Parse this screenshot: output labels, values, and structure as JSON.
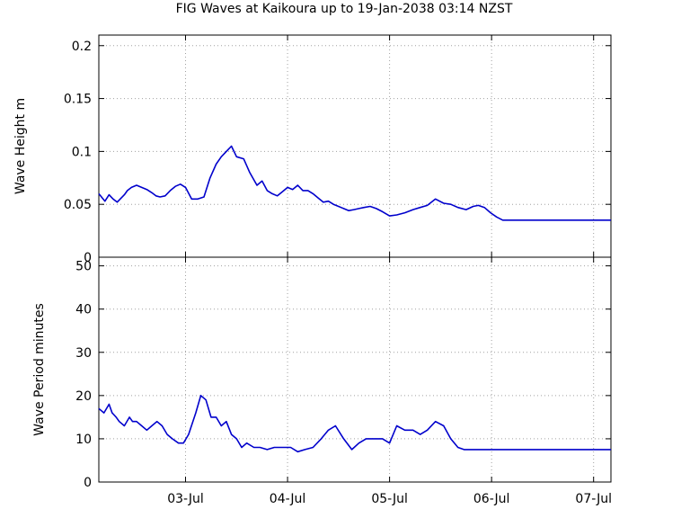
{
  "title": "FIG Waves at Kaikoura up to 19-Jan-2038 03:14 NZST",
  "colors": {
    "series": "#0000cc",
    "grid": "#a0a0a0",
    "frame": "#000000"
  },
  "chart_data": [
    {
      "type": "line",
      "ylabel": "Wave Height m",
      "ylim": [
        0,
        0.21
      ],
      "ytick_values": [
        0,
        0.05,
        0.1,
        0.15,
        0.2
      ],
      "ytick_labels": [
        "0",
        "0.05",
        "0.1",
        "0.15",
        "0.2"
      ],
      "xlim_days": [
        0,
        5.02
      ],
      "xtick_values": [
        0.85,
        1.85,
        2.85,
        3.85,
        4.85
      ],
      "xtick_labels": [
        "03-Jul",
        "04-Jul",
        "05-Jul",
        "06-Jul",
        "07-Jul"
      ],
      "grid": true,
      "series": [
        {
          "x": [
            0.0,
            0.06,
            0.1,
            0.14,
            0.18,
            0.21,
            0.25,
            0.28,
            0.32,
            0.37,
            0.42,
            0.47,
            0.52,
            0.56,
            0.6,
            0.65,
            0.7,
            0.75,
            0.8,
            0.85,
            0.91,
            0.97,
            1.03,
            1.09,
            1.15,
            1.2,
            1.25,
            1.3,
            1.35,
            1.42,
            1.48,
            1.55,
            1.6,
            1.65,
            1.7,
            1.75,
            1.8,
            1.85,
            1.9,
            1.95,
            2.0,
            2.05,
            2.1,
            2.15,
            2.2,
            2.25,
            2.3,
            2.35,
            2.4,
            2.45,
            2.5,
            2.55,
            2.6,
            2.66,
            2.72,
            2.78,
            2.85,
            2.92,
            3.0,
            3.08,
            3.15,
            3.22,
            3.3,
            3.38,
            3.45,
            3.52,
            3.6,
            3.67,
            3.72,
            3.78,
            3.84,
            3.9,
            3.96,
            4.02,
            4.08,
            4.15,
            4.22,
            4.3,
            4.36,
            4.4,
            4.45,
            4.52,
            4.6,
            4.65,
            4.72,
            4.8,
            4.88,
            5.02
          ],
          "y": [
            0.06,
            0.053,
            0.059,
            0.055,
            0.052,
            0.055,
            0.059,
            0.063,
            0.066,
            0.068,
            0.066,
            0.064,
            0.061,
            0.058,
            0.057,
            0.058,
            0.063,
            0.067,
            0.069,
            0.066,
            0.055,
            0.055,
            0.057,
            0.075,
            0.088,
            0.095,
            0.1,
            0.105,
            0.095,
            0.093,
            0.08,
            0.068,
            0.072,
            0.063,
            0.06,
            0.058,
            0.062,
            0.066,
            0.064,
            0.068,
            0.063,
            0.063,
            0.06,
            0.056,
            0.052,
            0.053,
            0.05,
            0.048,
            0.046,
            0.044,
            0.045,
            0.046,
            0.047,
            0.048,
            0.046,
            0.043,
            0.039,
            0.04,
            0.042,
            0.045,
            0.047,
            0.049,
            0.055,
            0.051,
            0.05,
            0.047,
            0.045,
            0.048,
            0.049,
            0.047,
            0.042,
            0.038,
            0.035,
            0.035,
            0.035,
            0.035,
            0.035,
            0.035,
            0.035,
            0.035,
            0.035,
            0.035,
            0.035,
            0.035,
            0.035,
            0.035,
            0.035,
            0.035
          ]
        }
      ]
    },
    {
      "type": "line",
      "ylabel": "Wave Period minutes",
      "ylim": [
        0,
        52
      ],
      "ytick_values": [
        0,
        10,
        20,
        30,
        40,
        50
      ],
      "ytick_labels": [
        "0",
        "10",
        "20",
        "30",
        "40",
        "50"
      ],
      "xlim_days": [
        0,
        5.02
      ],
      "xtick_values": [
        0.85,
        1.85,
        2.85,
        3.85,
        4.85
      ],
      "xtick_labels": [
        "03-Jul",
        "04-Jul",
        "05-Jul",
        "06-Jul",
        "07-Jul"
      ],
      "grid": true,
      "series": [
        {
          "x": [
            0.0,
            0.05,
            0.1,
            0.13,
            0.17,
            0.2,
            0.25,
            0.3,
            0.33,
            0.37,
            0.42,
            0.47,
            0.52,
            0.57,
            0.62,
            0.67,
            0.72,
            0.78,
            0.83,
            0.88,
            0.95,
            1.0,
            1.05,
            1.1,
            1.15,
            1.2,
            1.25,
            1.3,
            1.35,
            1.4,
            1.45,
            1.52,
            1.58,
            1.65,
            1.72,
            1.8,
            1.88,
            1.95,
            2.02,
            2.1,
            2.18,
            2.25,
            2.32,
            2.4,
            2.48,
            2.55,
            2.62,
            2.7,
            2.78,
            2.85,
            2.92,
            3.0,
            3.08,
            3.15,
            3.22,
            3.3,
            3.38,
            3.45,
            3.52,
            3.58,
            3.65,
            3.72,
            3.8,
            3.88,
            3.95,
            4.02,
            4.08,
            4.15,
            4.22,
            4.3,
            4.38,
            4.45,
            4.52,
            4.6,
            4.68,
            4.75,
            4.82,
            4.9,
            5.02
          ],
          "y": [
            17,
            16,
            18,
            16,
            15,
            14,
            13,
            15,
            14,
            14,
            13,
            12,
            13,
            14,
            13,
            11,
            10,
            9,
            9,
            11,
            16,
            20,
            19,
            15,
            15,
            13,
            14,
            11,
            10,
            8,
            9,
            8,
            8,
            7.5,
            8,
            8,
            8,
            7,
            7.5,
            8,
            10,
            12,
            13,
            10,
            7.5,
            9,
            10,
            10,
            10,
            9,
            13,
            12,
            12,
            11,
            12,
            14,
            13,
            10,
            8,
            7.5,
            7.5,
            7.5,
            7.5,
            7.5,
            7.5,
            7.5,
            7.5,
            7.5,
            7.5,
            7.5,
            7.5,
            7.5,
            7.5,
            7.5,
            7.5,
            7.5,
            7.5,
            7.5,
            7.5
          ]
        }
      ]
    }
  ]
}
